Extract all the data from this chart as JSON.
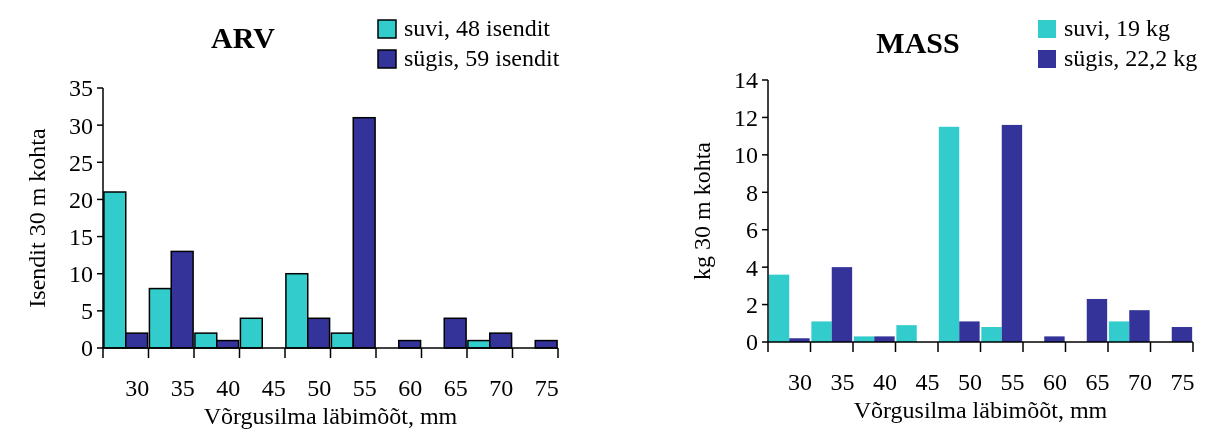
{
  "chart_data": [
    {
      "type": "bar",
      "title": "ARV",
      "xlabel": "Võrgusilma läbimõõt, mm",
      "ylabel": "Isendit 30 m kohta",
      "categories": [
        "30",
        "35",
        "40",
        "45",
        "50",
        "55",
        "60",
        "65",
        "70",
        "75"
      ],
      "series": [
        {
          "name": "suvi, 48 isendit",
          "color": "#33cccc",
          "values": [
            21,
            8,
            2,
            4,
            10,
            2,
            0,
            0,
            1,
            0
          ]
        },
        {
          "name": "sügis, 59 isendit",
          "color": "#333399",
          "values": [
            2,
            13,
            1,
            0,
            4,
            31,
            1,
            4,
            2,
            1
          ]
        }
      ],
      "ylim": [
        0,
        35
      ],
      "yticks": [
        0,
        5,
        10,
        15,
        20,
        25,
        30,
        35
      ],
      "legend": "top right",
      "grid": false
    },
    {
      "type": "bar",
      "title": "MASS",
      "xlabel": "Võrgusilma läbimõõt, mm",
      "ylabel": "kg 30 m kohta",
      "categories": [
        "30",
        "35",
        "40",
        "45",
        "50",
        "55",
        "60",
        "65",
        "70",
        "75"
      ],
      "series": [
        {
          "name": "suvi, 19 kg",
          "color": "#33cccc",
          "values": [
            3.6,
            1.1,
            0.3,
            0.9,
            11.5,
            0.8,
            0,
            0,
            1.1,
            0
          ]
        },
        {
          "name": "sügis, 22,2 kg",
          "color": "#333399",
          "values": [
            0.2,
            4.0,
            0.3,
            0,
            1.1,
            11.6,
            0.3,
            2.3,
            1.7,
            0.8
          ]
        }
      ],
      "ylim": [
        0,
        14
      ],
      "yticks": [
        0,
        2,
        4,
        6,
        8,
        10,
        12,
        14
      ],
      "legend": "top right",
      "grid": false
    }
  ]
}
